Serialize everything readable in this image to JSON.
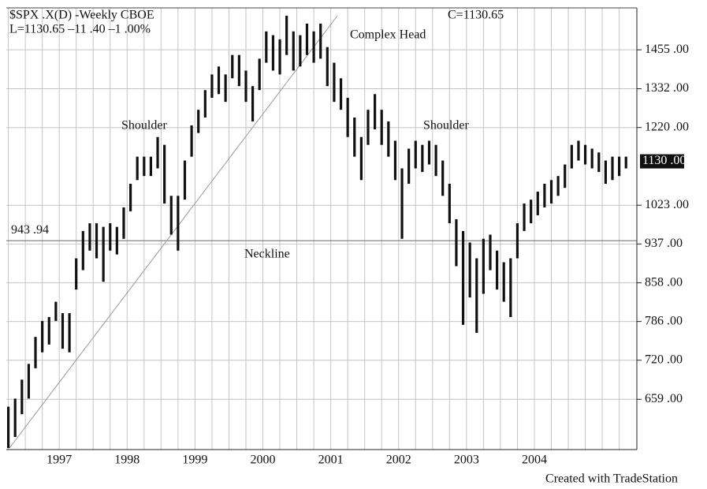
{
  "chart_data": {
    "type": "range-bar",
    "header": [
      "$SPX .X(D) -Weekly  CBOE",
      "L=1130.65  –11 .40  –1 .00%"
    ],
    "close_label": "C=1130.65",
    "annotations": [
      "Complex Head",
      "Shoulder",
      "Shoulder",
      "Neckline"
    ],
    "footer": "Created with TradeStation",
    "color": "#111111",
    "grid": true,
    "log_y": true,
    "x": [
      1996.25,
      1996.35,
      1996.45,
      1996.55,
      1996.65,
      1996.75,
      1996.85,
      1996.95,
      1997.05,
      1997.15,
      1997.25,
      1997.35,
      1997.45,
      1997.55,
      1997.65,
      1997.75,
      1997.85,
      1997.95,
      1998.05,
      1998.15,
      1998.25,
      1998.35,
      1998.45,
      1998.55,
      1998.65,
      1998.75,
      1998.85,
      1998.95,
      1999.05,
      1999.15,
      1999.25,
      1999.35,
      1999.45,
      1999.55,
      1999.65,
      1999.75,
      1999.85,
      1999.95,
      2000.05,
      2000.15,
      2000.25,
      2000.35,
      2000.45,
      2000.55,
      2000.65,
      2000.75,
      2000.85,
      2000.95,
      2001.05,
      2001.15,
      2001.25,
      2001.35,
      2001.45,
      2001.55,
      2001.65,
      2001.75,
      2001.85,
      2001.95,
      2002.05,
      2002.15,
      2002.25,
      2002.35,
      2002.45,
      2002.55,
      2002.65,
      2002.75,
      2002.85,
      2002.95,
      2003.05,
      2003.15,
      2003.25,
      2003.35,
      2003.45,
      2003.55,
      2003.65,
      2003.75,
      2003.85,
      2003.95,
      2004.05,
      2004.15,
      2004.25,
      2004.35,
      2004.45,
      2004.55,
      2004.65,
      2004.75,
      2004.85,
      2004.95,
      2005.05,
      2005.15,
      2005.25,
      2005.35
    ],
    "high": [
      648,
      660,
      689,
      714,
      759,
      787,
      794,
      822,
      801,
      801,
      907,
      965,
      982,
      982,
      974,
      982,
      974,
      1018,
      1074,
      1142,
      1142,
      1142,
      1194,
      1173,
      1045,
      1045,
      1132,
      1226,
      1270,
      1328,
      1376,
      1401,
      1376,
      1438,
      1438,
      1388,
      1340,
      1426,
      1517,
      1504,
      1490,
      1572,
      1517,
      1504,
      1544,
      1517,
      1544,
      1464,
      1413,
      1364,
      1305,
      1248,
      1194,
      1270,
      1316,
      1270,
      1237,
      1184,
      1112,
      1163,
      1184,
      1173,
      1184,
      1173,
      1132,
      1074,
      991,
      965,
      940,
      907,
      948,
      957,
      923,
      899,
      907,
      982,
      1027,
      1036,
      1055,
      1074,
      1083,
      1093,
      1122,
      1173,
      1184,
      1173,
      1163,
      1153,
      1132,
      1142,
      1142,
      1142
    ],
    "low": [
      590,
      605,
      637,
      660,
      707,
      733,
      746,
      787,
      739,
      733,
      845,
      883,
      923,
      907,
      860,
      923,
      915,
      948,
      1009,
      1083,
      1093,
      1093,
      1112,
      1027,
      957,
      923,
      1036,
      1142,
      1205,
      1248,
      1305,
      1316,
      1293,
      1364,
      1340,
      1293,
      1237,
      1328,
      1413,
      1388,
      1376,
      1438,
      1388,
      1401,
      1438,
      1413,
      1426,
      1340,
      1293,
      1270,
      1194,
      1142,
      1083,
      1173,
      1215,
      1173,
      1142,
      1083,
      948,
      1074,
      1112,
      1103,
      1122,
      1093,
      1045,
      982,
      891,
      780,
      830,
      766,
      837,
      883,
      845,
      822,
      794,
      907,
      965,
      982,
      1000,
      1018,
      1027,
      1045,
      1064,
      1112,
      1132,
      1122,
      1112,
      1103,
      1074,
      1083,
      1093,
      1112
    ],
    "xlim": [
      1996.22,
      2005.51
    ],
    "xticks": [
      1997,
      1998,
      1999,
      2000,
      2001,
      2002,
      2003,
      2004
    ],
    "xgrid": [
      1996.25,
      1996.5,
      1996.75,
      1997,
      1997.25,
      1997.5,
      1997.75,
      1998,
      1998.25,
      1998.5,
      1998.75,
      1999,
      1999.25,
      1999.5,
      1999.75,
      2000,
      2000.25,
      2000.5,
      2000.75,
      2001,
      2001.25,
      2001.5,
      2001.75,
      2002,
      2002.25,
      2002.5,
      2002.75,
      2003,
      2003.25,
      2003.5,
      2003.75,
      2004,
      2004.25,
      2004.5,
      2004.75,
      2005,
      2005.25
    ],
    "ylim": [
      588,
      1600
    ],
    "yticks": [
      {
        "value": 659,
        "label": "659 .00"
      },
      {
        "value": 720,
        "label": "720 .00"
      },
      {
        "value": 786,
        "label": "786 .00"
      },
      {
        "value": 858,
        "label": "858 .00"
      },
      {
        "value": 937,
        "label": "937 .00"
      },
      {
        "value": 1023,
        "label": "1023 .00"
      },
      {
        "value": 1220,
        "label": "1220 .00"
      },
      {
        "value": 1332,
        "label": "1332 .00"
      },
      {
        "value": 1455,
        "label": "1455 .00"
      }
    ],
    "neckline": {
      "value": 943.94,
      "label": "943 .94"
    },
    "last_price": {
      "value": 1130,
      "label": "1130 .00"
    }
  }
}
